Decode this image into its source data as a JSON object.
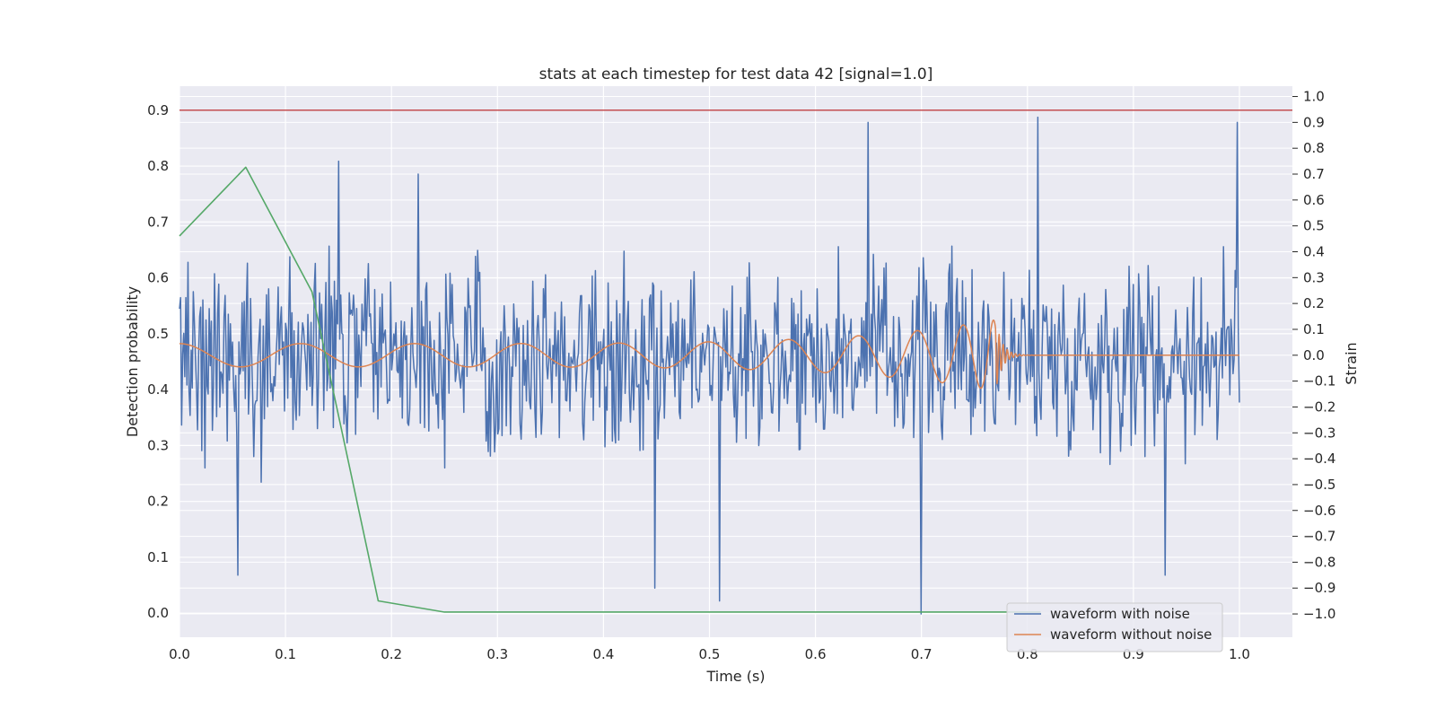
{
  "chart_data": {
    "type": "line",
    "title": "stats at each timestep for test data 42 [signal=1.0]",
    "xlabel": "Time (s)",
    "ylabel": "Detection probability",
    "y2label": "Strain",
    "xlim": [
      0.0,
      1.05
    ],
    "ylim": [
      -0.043,
      0.943
    ],
    "y2lim": [
      -1.09,
      1.04
    ],
    "xticks": [
      "0.0",
      "0.1",
      "0.2",
      "0.3",
      "0.4",
      "0.5",
      "0.6",
      "0.7",
      "0.8",
      "0.9",
      "1.0"
    ],
    "yticks": [
      "0.0",
      "0.1",
      "0.2",
      "0.3",
      "0.4",
      "0.5",
      "0.6",
      "0.7",
      "0.8",
      "0.9"
    ],
    "y2ticks": [
      "1.0",
      "0.9",
      "0.8",
      "0.7",
      "0.6",
      "0.5",
      "0.4",
      "0.3",
      "0.2",
      "0.1",
      "0.0",
      "−0.1",
      "−0.2",
      "−0.3",
      "−0.4",
      "−0.5",
      "−0.6",
      "−0.7",
      "−0.8",
      "−0.9",
      "−1.0"
    ],
    "grid": true,
    "legend_position": "lower-right",
    "threshold": {
      "y": 0.9,
      "color": "#c44e52"
    },
    "series": [
      {
        "name": "waveform with noise",
        "axis": "right",
        "color": "#4c72b0",
        "style": "noise",
        "x_start": 0.0,
        "x_end": 1.0,
        "points": 1000,
        "spread": 0.42,
        "spikes": [
          [
            0.055,
            -0.85
          ],
          [
            0.15,
            0.75
          ],
          [
            0.225,
            0.7
          ],
          [
            0.448,
            -0.9
          ],
          [
            0.51,
            -0.95
          ],
          [
            0.65,
            0.9
          ],
          [
            0.7,
            -1.0
          ],
          [
            0.81,
            0.92
          ],
          [
            0.93,
            -0.85
          ],
          [
            0.998,
            0.9
          ]
        ]
      },
      {
        "name": "waveform without noise",
        "axis": "right",
        "color": "#dd8452",
        "style": "chirp",
        "x_start": 0.0,
        "merger": 0.77,
        "x_end": 1.0,
        "base_amplitude": 0.045,
        "peak_amplitude": 0.14
      },
      {
        "axis": "left",
        "color": "#55a868",
        "style": "line",
        "x": [
          0.0,
          0.0625,
          0.125,
          0.1875,
          0.25,
          0.3125,
          0.375,
          0.4375,
          0.5,
          0.5625,
          0.625,
          0.6875,
          0.75,
          0.8125
        ],
        "y": [
          0.675,
          0.798,
          0.575,
          0.022,
          0.002,
          0.002,
          0.002,
          0.002,
          0.002,
          0.002,
          0.002,
          0.002,
          0.002,
          0.002
        ]
      }
    ]
  }
}
